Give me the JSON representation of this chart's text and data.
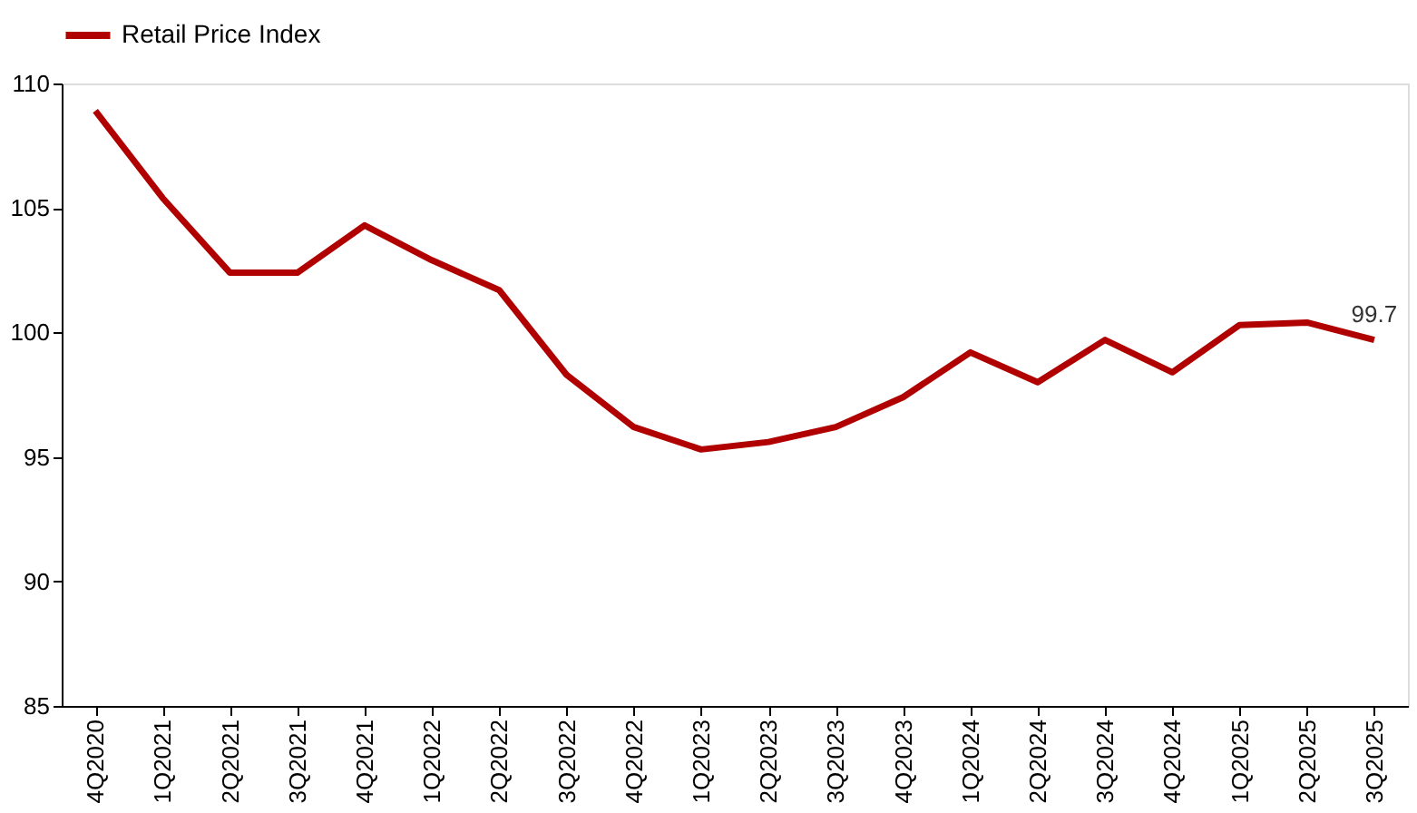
{
  "chart_data": {
    "type": "line",
    "categories": [
      "4Q2020",
      "1Q2021",
      "2Q2021",
      "3Q2021",
      "4Q2021",
      "1Q2022",
      "2Q2022",
      "3Q2022",
      "4Q2022",
      "1Q2023",
      "2Q2023",
      "3Q2023",
      "4Q2023",
      "1Q2024",
      "2Q2024",
      "3Q2024",
      "4Q2024",
      "1Q2025",
      "2Q2025",
      "3Q2025"
    ],
    "series": [
      {
        "name": "Retail Price Index",
        "color": "#b00000",
        "values": [
          108.9,
          105.4,
          102.4,
          102.4,
          104.3,
          102.9,
          101.7,
          98.3,
          96.2,
          95.3,
          95.6,
          96.2,
          97.4,
          99.2,
          98.0,
          99.7,
          98.4,
          100.3,
          100.4,
          99.7
        ],
        "value_labels": [
          null,
          null,
          null,
          null,
          null,
          null,
          null,
          null,
          null,
          null,
          null,
          null,
          null,
          null,
          null,
          null,
          null,
          null,
          null,
          "99.7"
        ]
      }
    ],
    "ylim": [
      85,
      110
    ],
    "yticks": [
      85,
      90,
      95,
      100,
      105,
      110
    ],
    "grid": false,
    "legend": "top",
    "marker": "none",
    "line_style": "solid"
  }
}
